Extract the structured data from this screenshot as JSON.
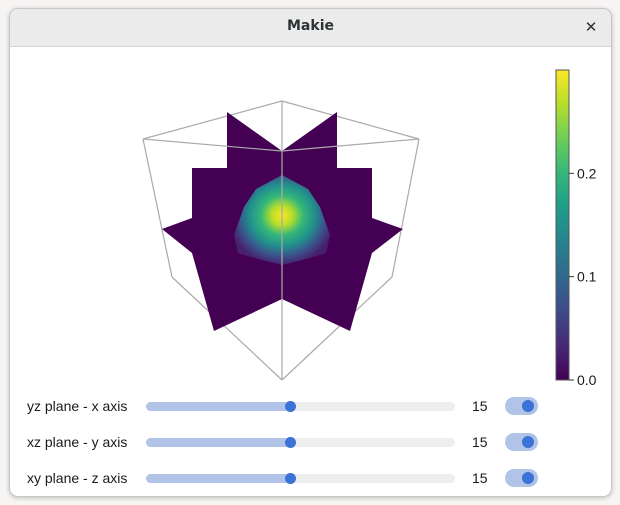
{
  "window": {
    "title": "Makie",
    "close_glyph": "✕",
    "close_icon": "close-icon"
  },
  "colorbar": {
    "colormap": "viridis",
    "colors": [
      "#440154",
      "#482878",
      "#3e4a89",
      "#31688e",
      "#26828e",
      "#1f9e89",
      "#35b779",
      "#6ece58",
      "#b5de2b",
      "#fde725"
    ],
    "ticks": [
      {
        "value": 0.0,
        "label": "0.0"
      },
      {
        "value": 0.1,
        "label": "0.1"
      },
      {
        "value": 0.2,
        "label": "0.2"
      }
    ],
    "range": [
      0.0,
      0.3
    ]
  },
  "plot": {
    "type": "volumeslices",
    "box_color": "#aaaaaa",
    "background_slice_color": "#440154"
  },
  "sliders": [
    {
      "label": "yz plane - x axis",
      "value": "15",
      "fraction": 0.465,
      "toggle_on": true
    },
    {
      "label": "xz plane - y axis",
      "value": "15",
      "fraction": 0.465,
      "toggle_on": true
    },
    {
      "label": "xy plane - z axis",
      "value": "15",
      "fraction": 0.465,
      "toggle_on": true
    }
  ]
}
